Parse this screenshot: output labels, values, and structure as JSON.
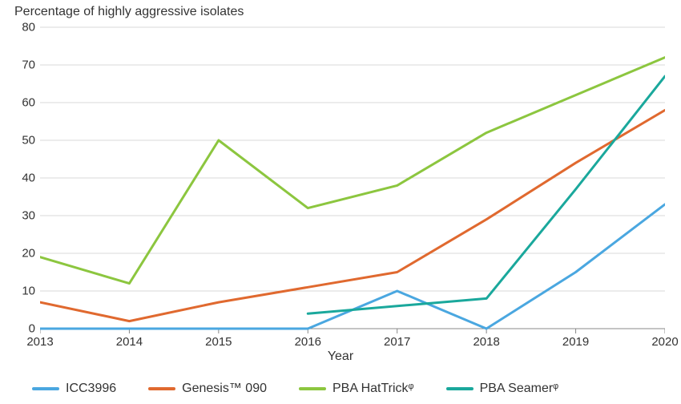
{
  "chart": {
    "type": "line",
    "y_axis_title": "Percentage of highly aggressive isolates",
    "x_axis_title": "Year",
    "title_fontsize": 16,
    "label_fontsize": 16,
    "tick_fontsize": 15,
    "background_color": "#ffffff",
    "grid_color": "#d9d9d9",
    "axis_color": "#888888",
    "line_width": 3,
    "x": {
      "values": [
        2013,
        2014,
        2015,
        2016,
        2017,
        2018,
        2019,
        2020
      ],
      "lim": [
        2013,
        2020
      ],
      "tick_step": 1
    },
    "y": {
      "lim": [
        0,
        80
      ],
      "tick_step": 10
    },
    "series": [
      {
        "name": "ICC3996",
        "color": "#4aa7e0",
        "x": [
          2013,
          2014,
          2015,
          2016,
          2017,
          2018,
          2019,
          2020
        ],
        "y": [
          0,
          0,
          0,
          0,
          10,
          0,
          15,
          33
        ]
      },
      {
        "name": "Genesis™ 090",
        "color": "#e0692f",
        "x": [
          2013,
          2014,
          2015,
          2016,
          2017,
          2018,
          2019,
          2020
        ],
        "y": [
          7,
          2,
          7,
          11,
          15,
          29,
          44,
          58
        ]
      },
      {
        "name": "PBA HatTrickᵠ",
        "color": "#8cc63f",
        "x": [
          2013,
          2014,
          2015,
          2016,
          2017,
          2018,
          2019,
          2020
        ],
        "y": [
          19,
          12,
          50,
          32,
          38,
          52,
          62,
          72
        ]
      },
      {
        "name": "PBA Seamerᵠ",
        "color": "#1aa89c",
        "x": [
          2016,
          2017,
          2018,
          2019,
          2020
        ],
        "y": [
          4,
          6,
          8,
          37,
          67
        ]
      }
    ],
    "legend": {
      "position": "bottom",
      "items": [
        {
          "label": "ICC3996",
          "color": "#4aa7e0"
        },
        {
          "label": "Genesis™ 090",
          "color": "#e0692f"
        },
        {
          "label": "PBA HatTrickᵠ",
          "color": "#8cc63f"
        },
        {
          "label": "PBA Seamerᵠ",
          "color": "#1aa89c"
        }
      ]
    }
  }
}
